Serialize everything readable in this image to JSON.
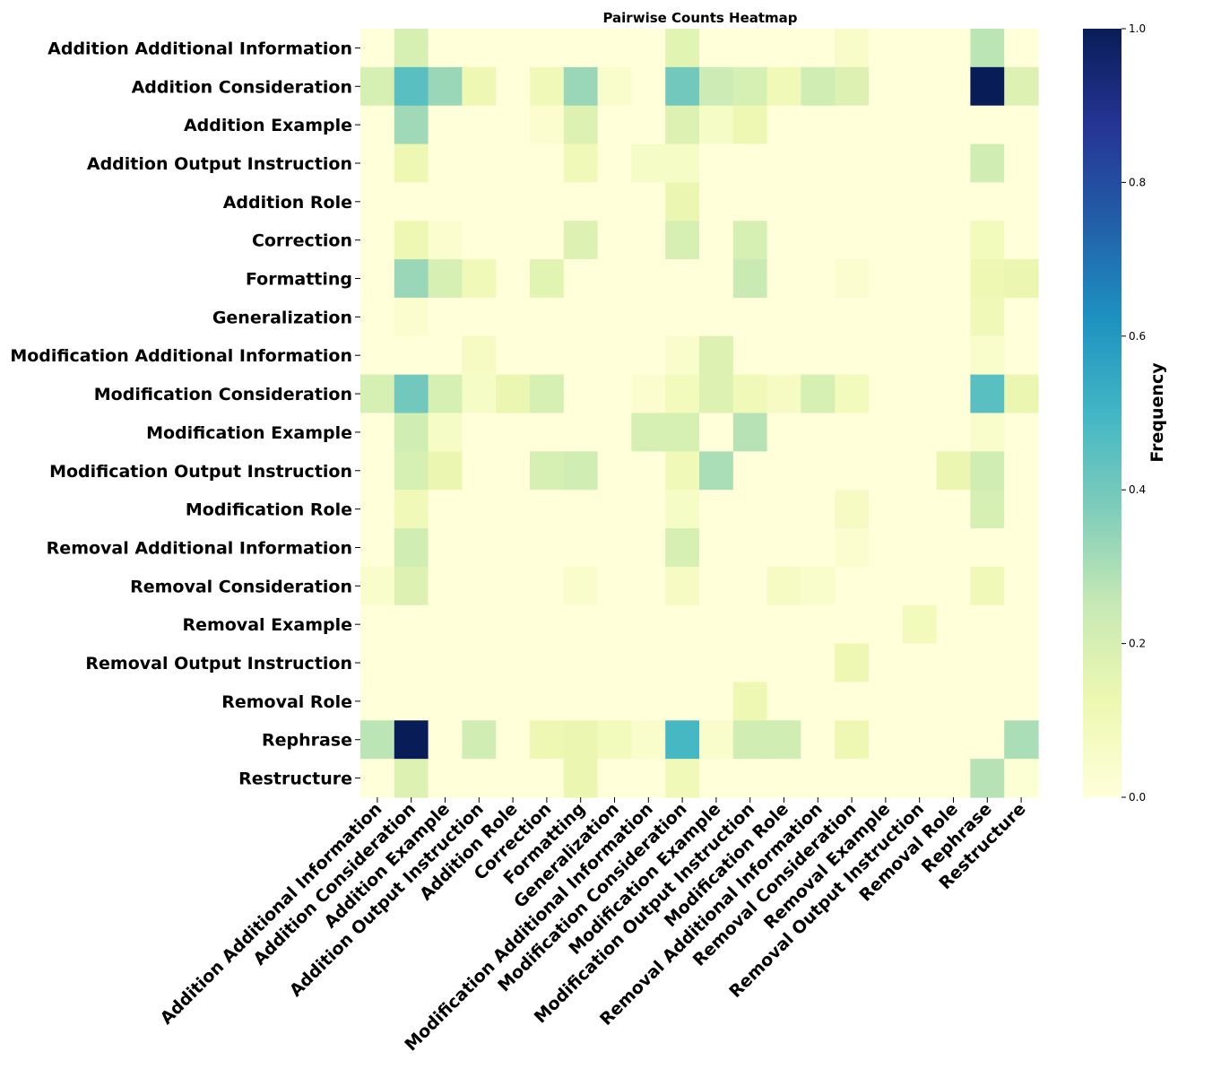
{
  "chart_data": {
    "type": "heatmap",
    "title": "Pairwise Counts Heatmap",
    "colorbar_label": "Frequency",
    "colormap": "YlGnBu",
    "vmin": 0.0,
    "vmax": 1.0,
    "colorbar_ticks": [
      "0.0",
      "0.2",
      "0.4",
      "0.6",
      "0.8",
      "1.0"
    ],
    "rows": [
      "Addition Additional Information",
      "Addition Consideration",
      "Addition Example",
      "Addition Output Instruction",
      "Addition Role",
      "Correction",
      "Formatting",
      "Generalization",
      "Modification Additional Information",
      "Modification Consideration",
      "Modification Example",
      "Modification Output Instruction",
      "Modification Role",
      "Removal Additional Information",
      "Removal Consideration",
      "Removal Example",
      "Removal Output Instruction",
      "Removal Role",
      "Rephrase",
      "Restructure"
    ],
    "columns": [
      "Addition Additional Information",
      "Addition Consideration",
      "Addition Example",
      "Addition Output Instruction",
      "Addition Role",
      "Correction",
      "Formatting",
      "Generalization",
      "Modification Additional Information",
      "Modification Consideration",
      "Modification Example",
      "Modification Output Instruction",
      "Modification Role",
      "Removal Additional Information",
      "Removal Consideration",
      "Removal Example",
      "Removal Output Instruction",
      "Removal Role",
      "Rephrase",
      "Restructure"
    ],
    "values": [
      [
        0,
        0.2,
        0,
        0,
        0,
        0,
        0,
        0,
        0,
        0.16,
        0,
        0,
        0,
        0,
        0.05,
        0,
        0,
        0,
        0.27,
        0
      ],
      [
        0.2,
        0.45,
        0.33,
        0.12,
        0,
        0.1,
        0.33,
        0.04,
        0,
        0.4,
        0.23,
        0.2,
        0.1,
        0.22,
        0.18,
        0,
        0,
        0,
        1.0,
        0.18
      ],
      [
        0,
        0.32,
        0,
        0,
        0,
        0.03,
        0.18,
        0,
        0,
        0.18,
        0.06,
        0.12,
        0,
        0,
        0,
        0,
        0,
        0,
        0,
        0
      ],
      [
        0,
        0.12,
        0,
        0,
        0,
        0,
        0.1,
        0,
        0.06,
        0.06,
        0,
        0,
        0,
        0,
        0,
        0,
        0,
        0,
        0.22,
        0
      ],
      [
        0,
        0,
        0,
        0,
        0,
        0,
        0,
        0,
        0,
        0.13,
        0,
        0,
        0,
        0,
        0,
        0,
        0,
        0,
        0,
        0
      ],
      [
        0,
        0.12,
        0.03,
        0,
        0,
        0,
        0.18,
        0,
        0,
        0.2,
        0,
        0.2,
        0,
        0,
        0,
        0,
        0,
        0,
        0.09,
        0
      ],
      [
        0,
        0.33,
        0.2,
        0.1,
        0,
        0.16,
        0,
        0,
        0,
        0,
        0,
        0.24,
        0,
        0,
        0.03,
        0,
        0,
        0,
        0.12,
        0.13
      ],
      [
        0,
        0.03,
        0,
        0,
        0,
        0,
        0,
        0,
        0,
        0,
        0,
        0,
        0,
        0,
        0,
        0,
        0,
        0,
        0.1,
        0
      ],
      [
        0,
        0,
        0,
        0.07,
        0,
        0,
        0,
        0,
        0,
        0.04,
        0.18,
        0,
        0,
        0,
        0,
        0,
        0,
        0,
        0.04,
        0
      ],
      [
        0.2,
        0.4,
        0.2,
        0.06,
        0.13,
        0.2,
        0,
        0,
        0.03,
        0.09,
        0.18,
        0.1,
        0.07,
        0.2,
        0.09,
        0,
        0,
        0,
        0.45,
        0.13
      ],
      [
        0,
        0.22,
        0.06,
        0,
        0,
        0,
        0,
        0,
        0.2,
        0.2,
        0,
        0.28,
        0,
        0,
        0,
        0,
        0,
        0,
        0.04,
        0
      ],
      [
        0,
        0.2,
        0.13,
        0,
        0,
        0.2,
        0.22,
        0,
        0,
        0.1,
        0.3,
        0,
        0,
        0,
        0,
        0,
        0,
        0.13,
        0.22,
        0
      ],
      [
        0,
        0.1,
        0,
        0,
        0,
        0,
        0,
        0,
        0,
        0.06,
        0,
        0,
        0,
        0,
        0.07,
        0,
        0,
        0,
        0.2,
        0
      ],
      [
        0,
        0.22,
        0,
        0,
        0,
        0,
        0,
        0,
        0,
        0.2,
        0,
        0,
        0,
        0,
        0.03,
        0,
        0,
        0,
        0,
        0
      ],
      [
        0.04,
        0.18,
        0,
        0,
        0,
        0,
        0.04,
        0,
        0,
        0.07,
        0,
        0,
        0.07,
        0.04,
        0,
        0,
        0,
        0,
        0.1,
        0
      ],
      [
        0,
        0,
        0,
        0,
        0,
        0,
        0,
        0,
        0,
        0,
        0,
        0,
        0,
        0,
        0,
        0,
        0.09,
        0,
        0,
        0
      ],
      [
        0,
        0,
        0,
        0,
        0,
        0,
        0,
        0,
        0,
        0,
        0,
        0,
        0,
        0,
        0.12,
        0,
        0,
        0,
        0,
        0
      ],
      [
        0,
        0,
        0,
        0,
        0,
        0,
        0,
        0,
        0,
        0,
        0,
        0.12,
        0,
        0,
        0,
        0,
        0,
        0,
        0,
        0
      ],
      [
        0.27,
        1.0,
        0,
        0.22,
        0,
        0.12,
        0.13,
        0.09,
        0.04,
        0.49,
        0.04,
        0.22,
        0.22,
        0,
        0.12,
        0,
        0,
        0,
        0,
        0.3
      ],
      [
        0,
        0.18,
        0,
        0,
        0,
        0,
        0.13,
        0,
        0,
        0.1,
        0,
        0,
        0,
        0,
        0,
        0,
        0,
        0,
        0.28,
        0.02
      ]
    ]
  }
}
